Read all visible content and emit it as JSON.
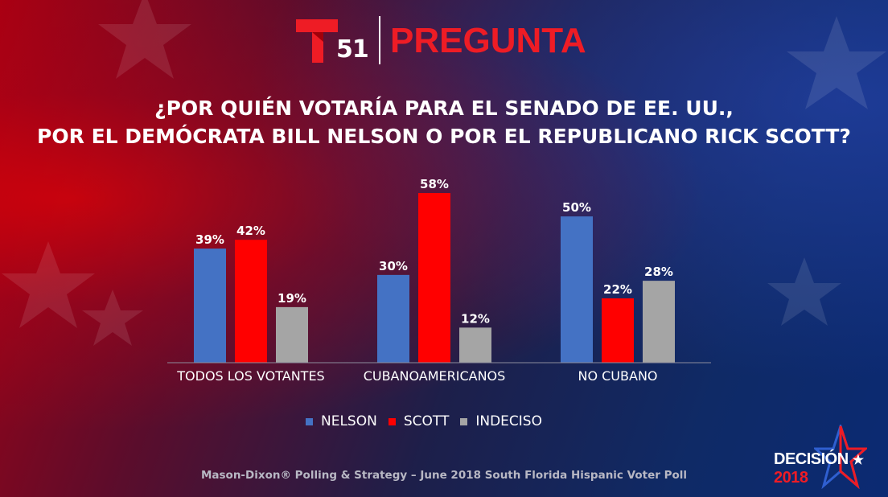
{
  "header": {
    "channel_number": "51",
    "title": "PREGUNTA"
  },
  "question": {
    "line1": "¿POR QUIÉN VOTARÍA PARA EL SENADO DE EE. UU.,",
    "line2": "POR EL DEMÓCRATA BILL NELSON O POR EL REPUBLICANO RICK SCOTT?"
  },
  "colors": {
    "nelson": "#4472c4",
    "scott": "#ff0000",
    "indeciso": "#a5a5a5",
    "brand_red": "#ee1c25"
  },
  "chart_data": {
    "type": "bar",
    "title": "",
    "xlabel": "",
    "ylabel": "",
    "ylim": [
      0,
      65
    ],
    "grid": false,
    "legend_position": "bottom",
    "categories": [
      "TODOS LOS VOTANTES",
      "CUBANOAMERICANOS",
      "NO CUBANO"
    ],
    "series": [
      {
        "name": "NELSON",
        "values": [
          39,
          30,
          50
        ],
        "labels": [
          "39%",
          "30%",
          "50%"
        ],
        "color": "#4472c4"
      },
      {
        "name": "SCOTT",
        "values": [
          42,
          58,
          22
        ],
        "labels": [
          "42%",
          "58%",
          "22%"
        ],
        "color": "#ff0000"
      },
      {
        "name": "INDECISO",
        "values": [
          19,
          12,
          28
        ],
        "labels": [
          "19%",
          "12%",
          "28%"
        ],
        "color": "#a5a5a5"
      }
    ]
  },
  "source": "Mason-Dixon® Polling & Strategy – June 2018 South Florida Hispanic Voter Poll",
  "branding": {
    "decision_word": "DECISIÓN",
    "decision_year": "2018",
    "icons": [
      "telemundo-t-logo-icon",
      "star-icon"
    ]
  }
}
